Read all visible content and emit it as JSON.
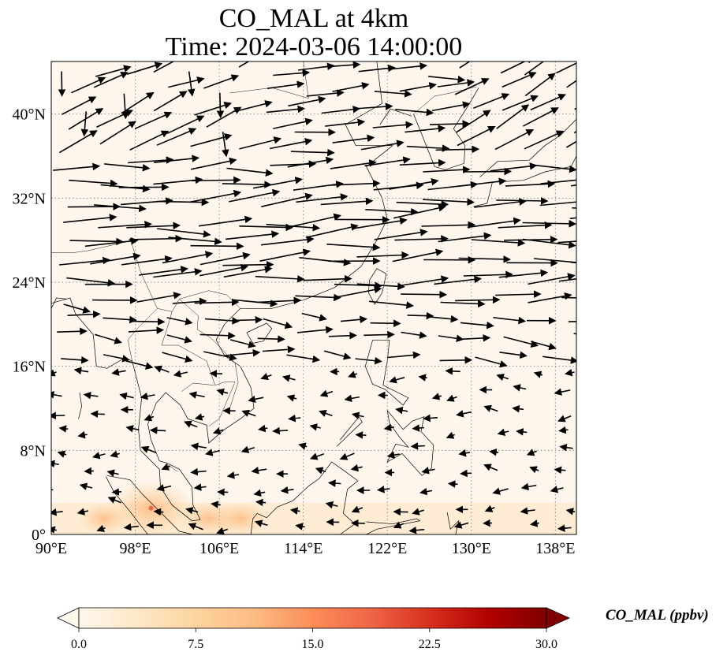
{
  "title_line1": "CO_MAL at 4km",
  "title_line2": "Time: 2024-03-06 14:00:00",
  "chart_data": {
    "type": "heatmap",
    "title": "CO_MAL at 4km\nTime: 2024-03-06 14:00:00",
    "projection": "PlateCarree",
    "xlim": [
      90,
      140
    ],
    "ylim": [
      0,
      45
    ],
    "x_ticks": [
      90,
      98,
      106,
      114,
      122,
      130,
      138
    ],
    "x_tick_labels": [
      "90°E",
      "98°E",
      "106°E",
      "114°E",
      "122°E",
      "130°E",
      "138°E"
    ],
    "y_ticks": [
      0,
      8,
      16,
      24,
      32,
      40
    ],
    "y_tick_labels": [
      "0°",
      "8°N",
      "16°N",
      "24°N",
      "32°N",
      "40°N"
    ],
    "grid": true,
    "colorbar": {
      "label": "CO_MAL (ppbv)",
      "cmap": "OrRd",
      "vmin": 0,
      "vmax": 30,
      "ticks": [
        0,
        7.5,
        15,
        22.5,
        30
      ],
      "tick_labels": [
        "0.0",
        "7.5",
        "15.0",
        "22.5",
        "30.0"
      ],
      "extend": "both"
    },
    "field_hotspots": [
      {
        "lon": 99.5,
        "lat": 2.5,
        "value": 10
      },
      {
        "lon": 105,
        "lat": 1.5,
        "value": 4
      },
      {
        "lon": 108,
        "lat": 1.5,
        "value": 4
      },
      {
        "lon": 95,
        "lat": 1.5,
        "value": 3
      }
    ],
    "wind_quivers": "westerly flow, strongest 22-35N, weak/easterly south of 16N"
  },
  "colors": {
    "cmap": [
      "#fff7ec",
      "#fee8c8",
      "#fdd49e",
      "#fdbb84",
      "#fc8d59",
      "#ef6548",
      "#d7301f",
      "#b30000",
      "#7f0000"
    ],
    "grid": "#8c8c8c",
    "land_border": "#000000"
  }
}
